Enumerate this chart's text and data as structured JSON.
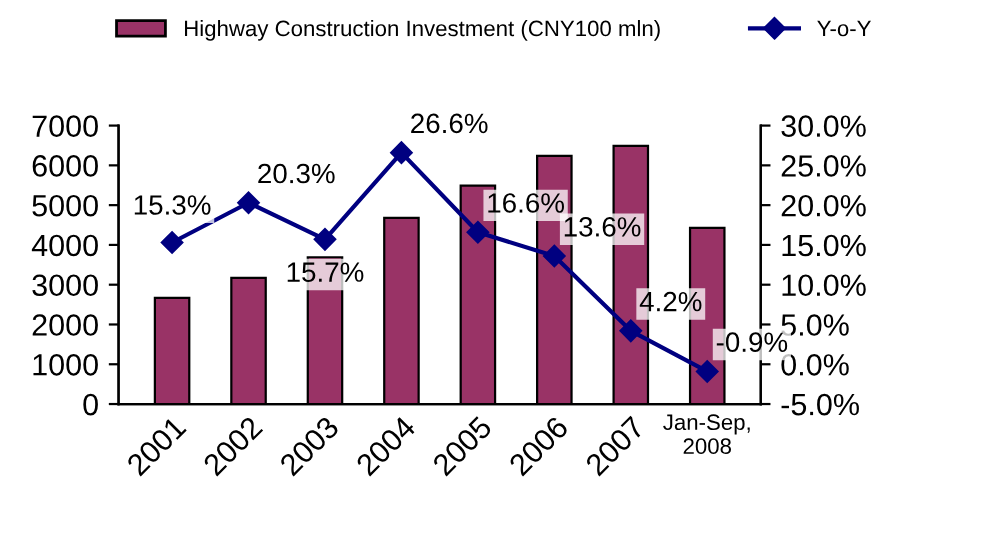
{
  "chart_data": {
    "type": "bar",
    "categories": [
      "2001",
      "2002",
      "2003",
      "2004",
      "2005",
      "2006",
      "2007",
      "Jan-Sep,\n2008"
    ],
    "series": [
      {
        "name": "Highway Construction Investment (CNY100 mln)",
        "color": "#993366",
        "values": [
          2670,
          3170,
          3690,
          4680,
          5490,
          6240,
          6490,
          4430
        ]
      },
      {
        "name": "Y-o-Y",
        "type": "line",
        "axis": "y2",
        "color": "#000080",
        "marker": "diamond",
        "values": [
          15.3,
          20.3,
          15.7,
          26.6,
          16.6,
          13.6,
          4.2,
          -0.9
        ],
        "value_labels": [
          "15.3%",
          "20.3%",
          "15.7%",
          "26.6%",
          "16.6%",
          "13.6%",
          "4.2%",
          "-0.9%"
        ]
      }
    ],
    "ylim": [
      0,
      7000
    ],
    "yticks": [
      0,
      1000,
      2000,
      3000,
      4000,
      5000,
      6000,
      7000
    ],
    "y2lim": [
      -5,
      30
    ],
    "y2ticks": [
      {
        "value": -5,
        "label": "-5.0%"
      },
      {
        "value": 0,
        "label": "0.0%"
      },
      {
        "value": 5,
        "label": "5.0%"
      },
      {
        "value": 10,
        "label": "10.0%"
      },
      {
        "value": 15,
        "label": "15.0%"
      },
      {
        "value": 20,
        "label": "20.0%"
      },
      {
        "value": 25,
        "label": "25.0%"
      },
      {
        "value": 30,
        "label": "30.0%"
      }
    ],
    "grid": false,
    "legend": "top"
  }
}
